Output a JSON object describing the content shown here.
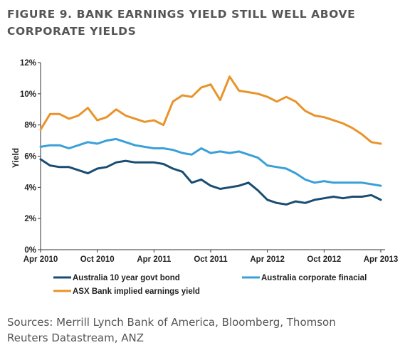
{
  "title_lines": [
    "FIGURE 9. BANK EARNINGS YIELD STILL WELL ABOVE",
    "CORPORATE YIELDS"
  ],
  "source_lines": [
    "Sources: Merrill Lynch Bank of America, Bloomberg, Thomson",
    "Reuters Datastream, ANZ"
  ],
  "chart_data": {
    "type": "line",
    "title": "FIGURE 9. BANK EARNINGS YIELD STILL WELL ABOVE CORPORATE YIELDS",
    "xlabel": "",
    "ylabel": "Yield",
    "x": [
      "Apr 2010",
      "May 2010",
      "Jun 2010",
      "Jul 2010",
      "Aug 2010",
      "Sep 2010",
      "Oct 2010",
      "Nov 2010",
      "Dec 2010",
      "Jan 2011",
      "Feb 2011",
      "Mar 2011",
      "Apr 2011",
      "May 2011",
      "Jun 2011",
      "Jul 2011",
      "Aug 2011",
      "Sep 2011",
      "Oct 2011",
      "Nov 2011",
      "Dec 2011",
      "Jan 2012",
      "Feb 2012",
      "Mar 2012",
      "Apr 2012",
      "May 2012",
      "Jun 2012",
      "Jul 2012",
      "Aug 2012",
      "Sep 2012",
      "Oct 2012",
      "Nov 2012",
      "Dec 2012",
      "Jan 2013",
      "Feb 2013",
      "Mar 2013",
      "Apr 2013"
    ],
    "x_ticks": [
      "Apr 2010",
      "Oct 2010",
      "Apr 2011",
      "Oct 2011",
      "Apr 2012",
      "Oct 2012",
      "Apr 2013"
    ],
    "y_ticks": [
      "0%",
      "2%",
      "4%",
      "6%",
      "8%",
      "10%",
      "12%"
    ],
    "ylim": [
      0,
      12
    ],
    "y_unit": "%",
    "grid": false,
    "legend_position": "bottom",
    "series": [
      {
        "name": "Australia 10 year govt bond",
        "color": "#1a4d73",
        "values": [
          5.8,
          5.4,
          5.3,
          5.3,
          5.1,
          4.9,
          5.2,
          5.3,
          5.6,
          5.7,
          5.6,
          5.6,
          5.6,
          5.5,
          5.2,
          5.0,
          4.3,
          4.5,
          4.1,
          3.9,
          4.0,
          4.1,
          4.3,
          3.8,
          3.2,
          3.0,
          2.9,
          3.1,
          3.0,
          3.2,
          3.3,
          3.4,
          3.3,
          3.4,
          3.4,
          3.5,
          3.2
        ]
      },
      {
        "name": "Australia corporate finacial",
        "color": "#3aa0d8",
        "values": [
          6.6,
          6.7,
          6.7,
          6.5,
          6.7,
          6.9,
          6.8,
          7.0,
          7.1,
          6.9,
          6.7,
          6.6,
          6.5,
          6.5,
          6.4,
          6.2,
          6.1,
          6.5,
          6.2,
          6.3,
          6.2,
          6.3,
          6.1,
          5.9,
          5.4,
          5.3,
          5.2,
          4.9,
          4.5,
          4.3,
          4.4,
          4.3,
          4.3,
          4.3,
          4.3,
          4.2,
          4.1
        ]
      },
      {
        "name": "ASX Bank implied earnings yield",
        "color": "#e8942a",
        "values": [
          7.7,
          8.7,
          8.7,
          8.4,
          8.6,
          9.1,
          8.3,
          8.5,
          9.0,
          8.6,
          8.4,
          8.2,
          8.3,
          8.0,
          9.5,
          9.9,
          9.8,
          10.4,
          10.6,
          9.6,
          11.1,
          10.2,
          10.1,
          10.0,
          9.8,
          9.5,
          9.8,
          9.5,
          8.9,
          8.6,
          8.5,
          8.3,
          8.1,
          7.8,
          7.4,
          6.9,
          6.8
        ]
      }
    ]
  }
}
